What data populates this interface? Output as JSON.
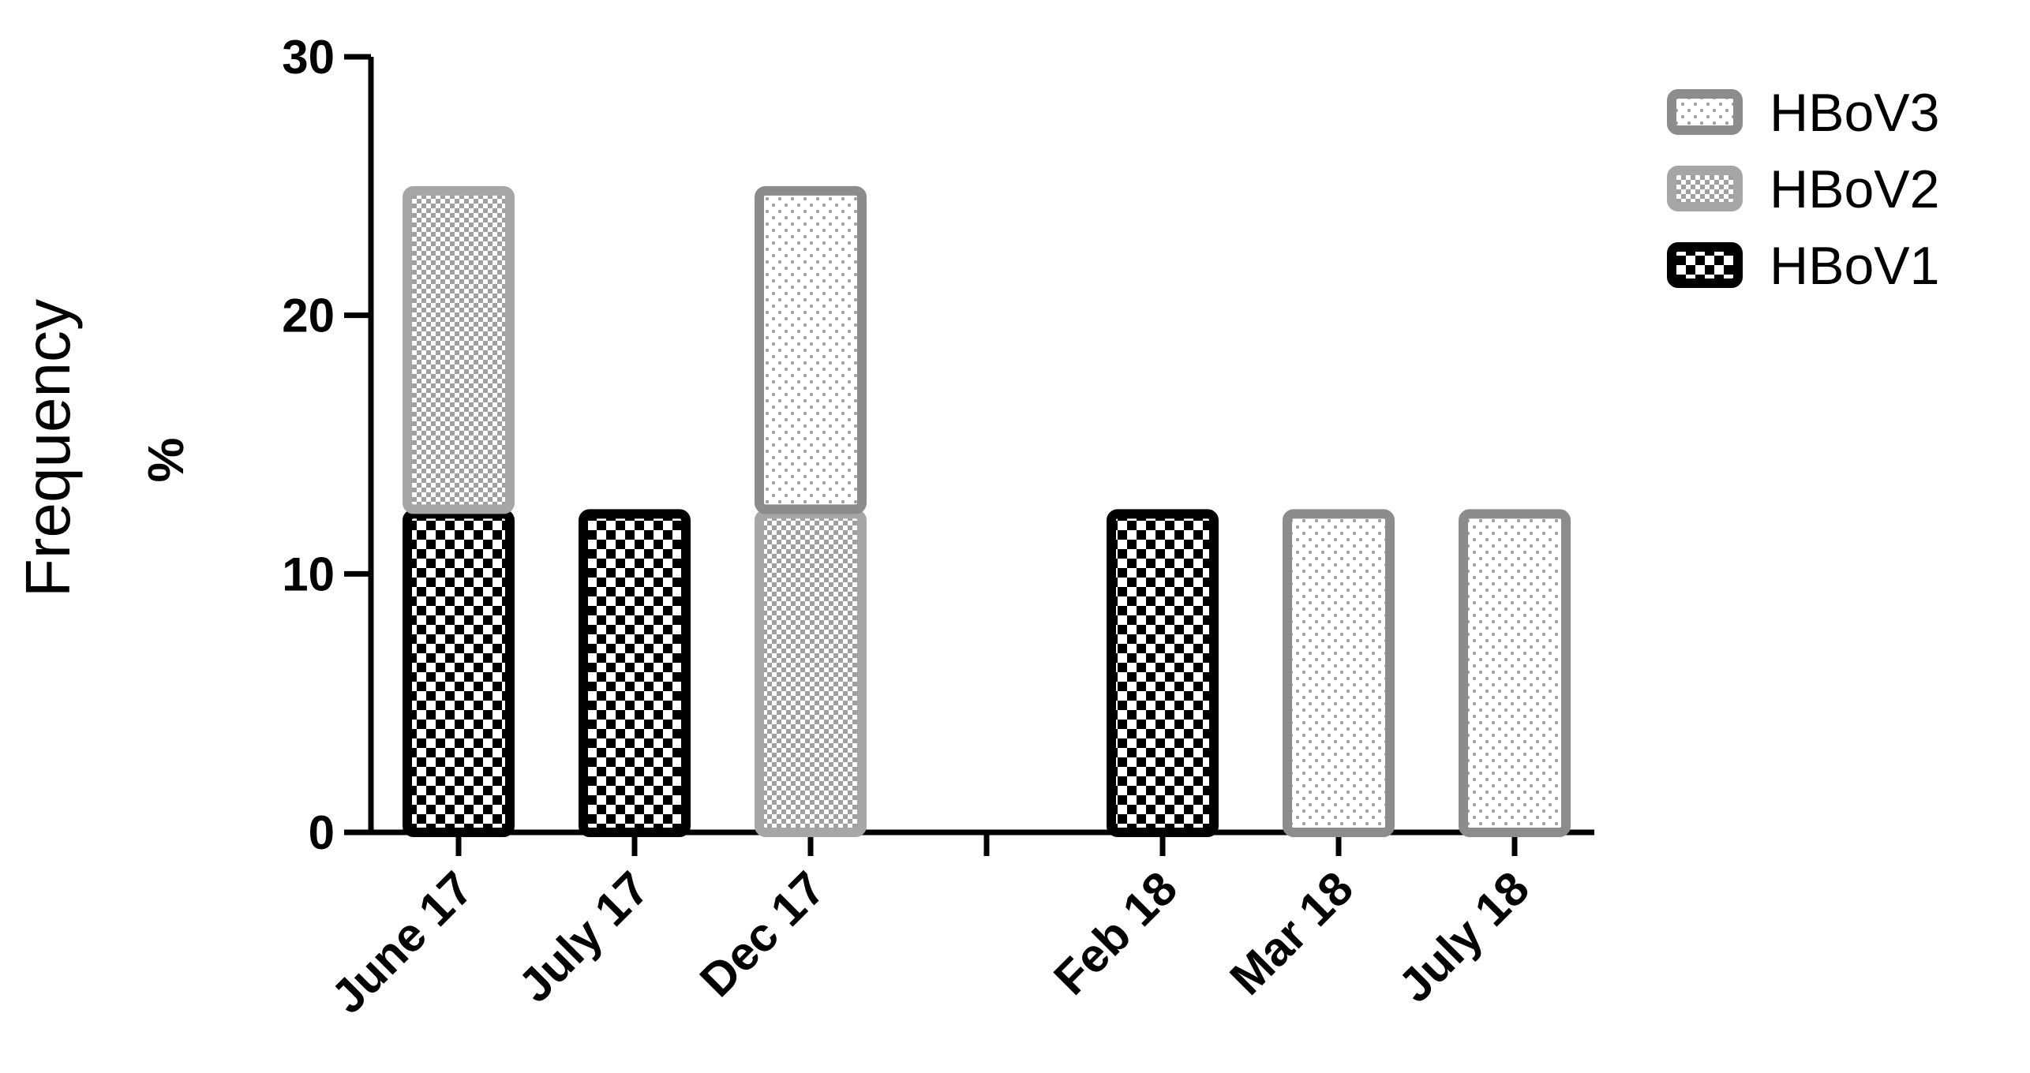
{
  "chart_data": {
    "type": "bar",
    "stacked": true,
    "categories": [
      "June 17",
      "July 17",
      "Dec 17",
      "",
      "Feb 18",
      "Mar 18",
      "July 18"
    ],
    "series": [
      {
        "name": "HBoV1",
        "values": [
          12.5,
          12.5,
          0,
          0,
          12.5,
          0,
          0
        ],
        "fill": "#000000",
        "pattern": "checker-large",
        "border": "#000000"
      },
      {
        "name": "HBoV2",
        "values": [
          12.5,
          0,
          12.5,
          0,
          0,
          0,
          0
        ],
        "fill": "#c8c8c8",
        "pattern": "checker-small",
        "border": "#a6a6a6"
      },
      {
        "name": "HBoV3",
        "values": [
          0,
          0,
          12.5,
          0,
          0,
          12.5,
          12.5
        ],
        "fill": "#e6e6e6",
        "pattern": "dots",
        "border": "#8c8c8c"
      }
    ],
    "ylim": [
      0,
      30
    ],
    "yticks": [
      "0",
      "10",
      "20",
      "30"
    ],
    "ylabel_line1": "Frequency",
    "ylabel_line2": "%",
    "legend_order": [
      "HBoV3",
      "HBoV2",
      "HBoV1"
    ],
    "legend_position": "top-right",
    "grid": false
  }
}
